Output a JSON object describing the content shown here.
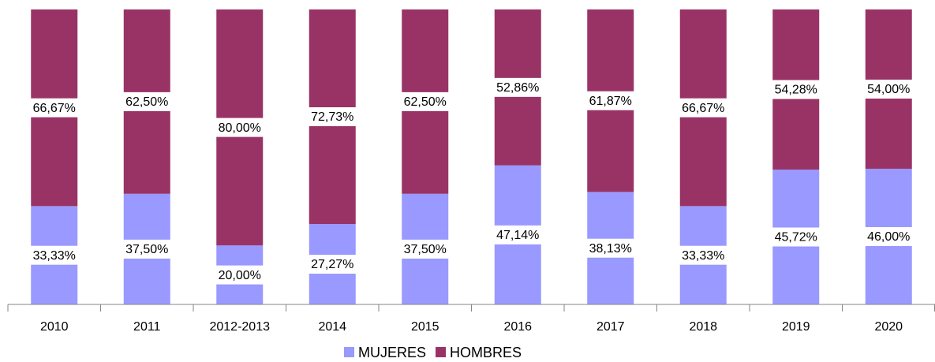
{
  "chart_data": {
    "type": "stacked_bar",
    "categories": [
      "2010",
      "2011",
      "2012-2013",
      "2014",
      "2015",
      "2016",
      "2017",
      "2018",
      "2019",
      "2020"
    ],
    "ylim": [
      0,
      100
    ],
    "series": [
      {
        "name": "MUJERES",
        "color": "#9999ff",
        "values": [
          33.33,
          37.5,
          20,
          27.27,
          37.5,
          47.14,
          38.13,
          33.33,
          45.72,
          46
        ],
        "value_labels": [
          "33,33%",
          "37,50%",
          "20,00%",
          "27,27%",
          "37,50%",
          "47,14%",
          "38,13%",
          "33,33%",
          "45,72%",
          "46,00%"
        ]
      },
      {
        "name": "HOMBRES",
        "color": "#993366",
        "values": [
          66.67,
          62.5,
          80,
          72.73,
          62.5,
          52.86,
          61.87,
          66.67,
          54.28,
          54
        ],
        "value_labels": [
          "66,67%",
          "62,50%",
          "80,00%",
          "72,73%",
          "62,50%",
          "52,86%",
          "61,87%",
          "66,67%",
          "54,28%",
          "54,00%"
        ]
      }
    ],
    "legend": "bottom"
  }
}
